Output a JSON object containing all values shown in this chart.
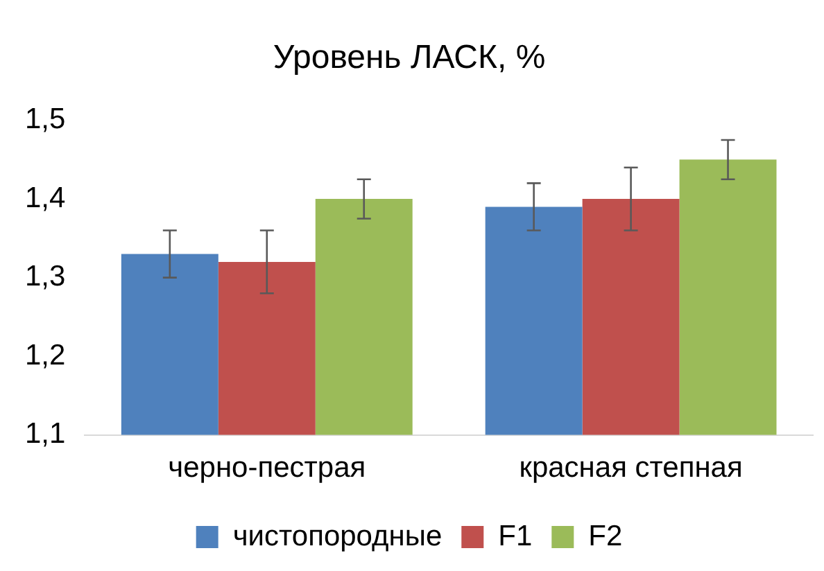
{
  "chart_data": {
    "type": "bar",
    "title": "Уровень ЛАСК, %",
    "categories": [
      "черно-пестрая",
      "красная степная"
    ],
    "series": [
      {
        "name": "чистопородные",
        "color": "#4f81bd",
        "values": [
          1.33,
          1.39
        ],
        "errors": [
          0.03,
          0.03
        ]
      },
      {
        "name": "F1",
        "color": "#c0504d",
        "values": [
          1.32,
          1.4
        ],
        "errors": [
          0.04,
          0.04
        ]
      },
      {
        "name": "F2",
        "color": "#9bbb59",
        "values": [
          1.4,
          1.45
        ],
        "errors": [
          0.025,
          0.025
        ]
      }
    ],
    "ylim": [
      1.1,
      1.5
    ],
    "yticks": [
      {
        "value": 1.1,
        "label": "1,1"
      },
      {
        "value": 1.2,
        "label": "1,2"
      },
      {
        "value": 1.3,
        "label": "1,3"
      },
      {
        "value": 1.4,
        "label": "1,4"
      },
      {
        "value": 1.5,
        "label": "1,5"
      }
    ],
    "grid": false,
    "legend": "bottom"
  }
}
